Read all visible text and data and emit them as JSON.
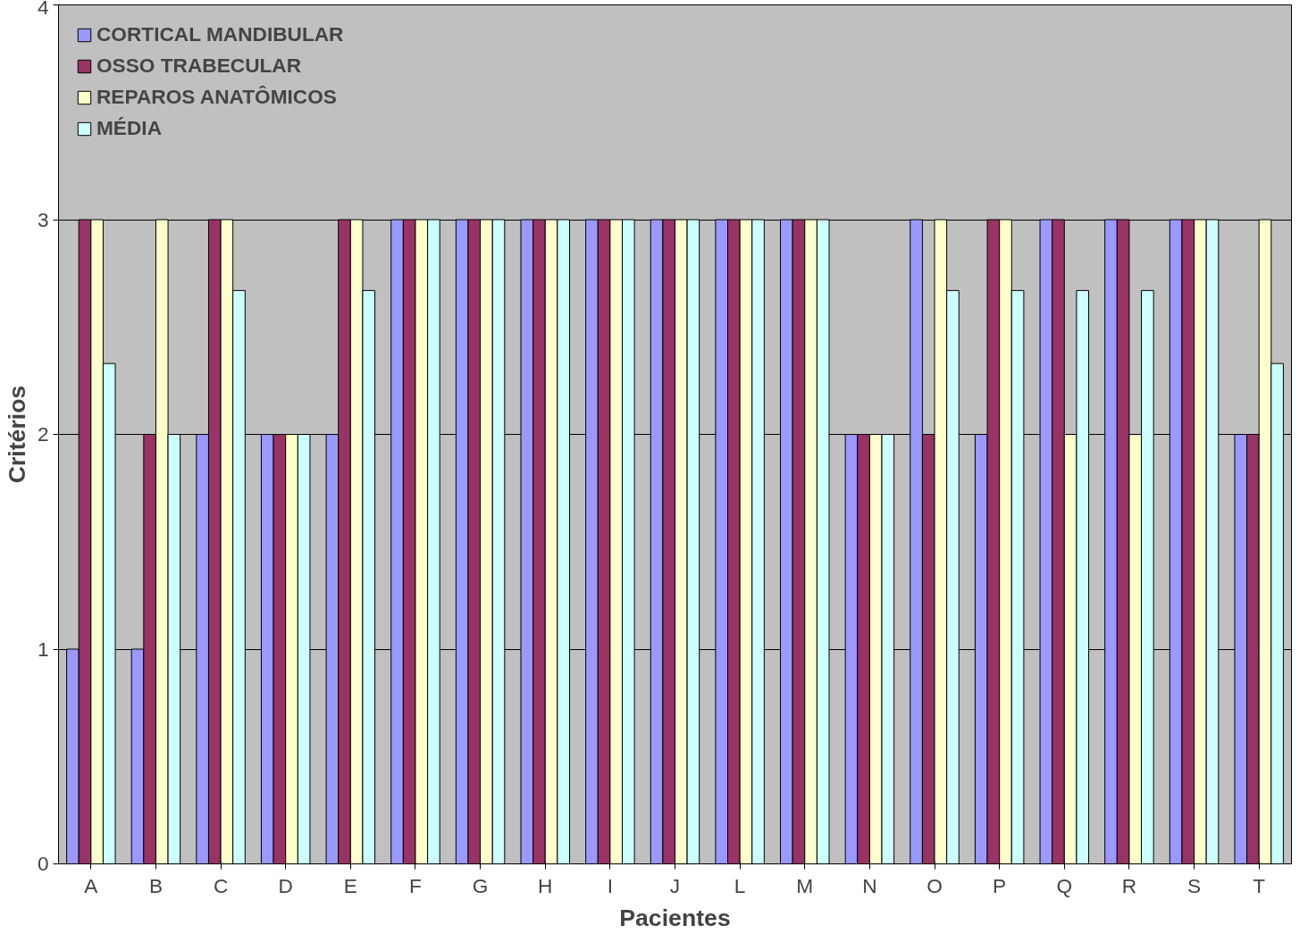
{
  "chart_data": {
    "type": "bar",
    "xlabel": "Pacientes",
    "ylabel": "Critérios",
    "categories": [
      "A",
      "B",
      "C",
      "D",
      "E",
      "F",
      "G",
      "H",
      "I",
      "J",
      "L",
      "M",
      "N",
      "O",
      "P",
      "Q",
      "R",
      "S",
      "T"
    ],
    "series": [
      {
        "name": "CORTICAL MANDIBULAR",
        "color": "#9999ff",
        "values": [
          1,
          1,
          2,
          2,
          2,
          3,
          3,
          3,
          3,
          3,
          3,
          3,
          2,
          3,
          2,
          3,
          3,
          3,
          2
        ]
      },
      {
        "name": "OSSO TRABECULAR",
        "color": "#993366",
        "values": [
          3,
          2,
          3,
          2,
          3,
          3,
          3,
          3,
          3,
          3,
          3,
          3,
          2,
          2,
          3,
          3,
          3,
          3,
          2
        ]
      },
      {
        "name": "REPAROS ANATÔMICOS",
        "color": "#ffffcc",
        "values": [
          3,
          3,
          3,
          2,
          3,
          3,
          3,
          3,
          3,
          3,
          3,
          3,
          2,
          3,
          3,
          2,
          2,
          3,
          3
        ]
      },
      {
        "name": "MÉDIA",
        "color": "#ccffff",
        "values": [
          2.33,
          2,
          2.67,
          2,
          2.67,
          3,
          3,
          3,
          3,
          3,
          3,
          3,
          2,
          2.67,
          2.67,
          2.67,
          2.67,
          3,
          2.33
        ]
      }
    ],
    "ylim": [
      0,
      4
    ],
    "yticks": [
      0,
      1,
      2,
      3,
      4
    ],
    "grid": "y",
    "legend": "top left"
  }
}
